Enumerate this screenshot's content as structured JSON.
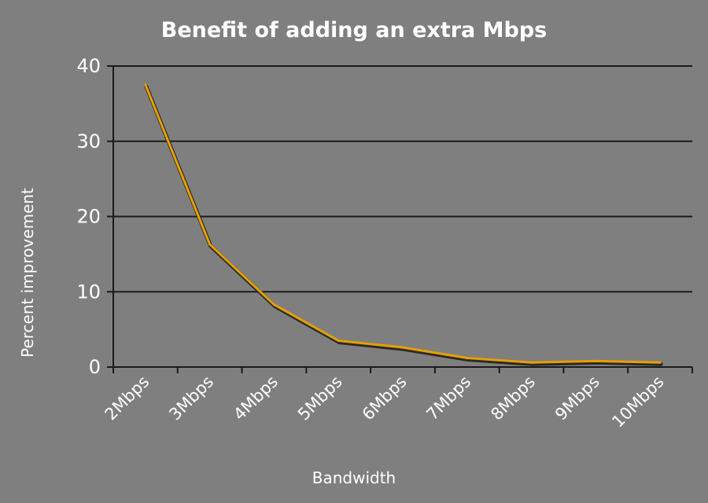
{
  "chart_data": {
    "type": "line",
    "title": "Benefit of adding an extra Mbps",
    "xlabel": "Bandwidth",
    "ylabel": "Percent improvement",
    "categories": [
      "2Mbps",
      "3Mbps",
      "4Mbps",
      "5Mbps",
      "6Mbps",
      "7Mbps",
      "8Mbps",
      "9Mbps",
      "10Mbps"
    ],
    "series": [
      {
        "values": [
          37.5,
          16.3,
          8.3,
          3.5,
          2.6,
          1.2,
          0.6,
          0.8,
          0.6
        ],
        "color": "#e8a000"
      }
    ],
    "ylim": [
      0,
      40
    ],
    "yticks": [
      0,
      10,
      20,
      30,
      40
    ],
    "grid": true,
    "legend": "none",
    "colors": {
      "background": "#7f7f7f",
      "text": "#ffffff",
      "gridline": "#1a1a1a",
      "axis": "#1a1a1a",
      "line": "#e8a000",
      "line_shadow": "#2a2a2a"
    }
  }
}
